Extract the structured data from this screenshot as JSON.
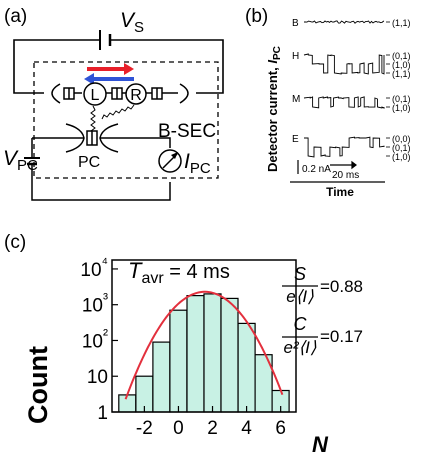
{
  "panels": {
    "a": {
      "tag": "(a)"
    },
    "b": {
      "tag": "(b)"
    },
    "c": {
      "tag": "(c)"
    }
  },
  "circuit": {
    "source_label": "V",
    "source_sub": "S",
    "dot_left": "L",
    "dot_right": "R",
    "sec_label": "B-SEC",
    "pc_label": "PC",
    "vpc_label": "V",
    "vpc_sub": "PC",
    "ipc_label": "I",
    "ipc_sub": "PC",
    "arrow_colors": {
      "forward": "#e8202a",
      "backward": "#2f53d6"
    }
  },
  "traces": {
    "ylabel_main": "Detector current, ",
    "ylabel_sym": "I",
    "ylabel_sub": "PC",
    "xlabel": "Time",
    "scale_current": "0.2 nA",
    "scale_time": "20 ms",
    "rows": [
      {
        "letter": "B",
        "states": [
          "(1,1)"
        ]
      },
      {
        "letter": "H",
        "states": [
          "(0,1)",
          "(1,0)",
          "(1,1)"
        ]
      },
      {
        "letter": "M",
        "states": [
          "(0,1)",
          "(1,0)"
        ]
      },
      {
        "letter": "E",
        "states": [
          "(0,0)",
          "(0,1)",
          "(1,0)"
        ]
      }
    ]
  },
  "histogram": {
    "tavr_sym": "T",
    "tavr_sub": "avr",
    "tavr_value": " = 4 ms",
    "ratio1_num": "S",
    "ratio1_den": "e⟨I⟩",
    "ratio1_value": "=0.88",
    "ratio2_num": "C",
    "ratio2_den": "e²⟨I⟩",
    "ratio2_value": "=0.17",
    "ylabel": "Count",
    "xlabel": "N",
    "bar_color": "#c8f1e4",
    "fit_color": "#e3303d"
  },
  "chart_data": {
    "type": "bar",
    "xlabel": "N",
    "ylabel": "Count",
    "yscale": "log",
    "ylim": [
      1,
      10000
    ],
    "x": [
      -3,
      -2,
      -1,
      0,
      1,
      2,
      3,
      4,
      5,
      6
    ],
    "values": [
      3,
      10,
      90,
      700,
      1800,
      2000,
      1500,
      300,
      40,
      4
    ],
    "fit": [
      1,
      4,
      60,
      600,
      1900,
      2100,
      1400,
      250,
      20,
      1
    ],
    "x_ticks": [
      "-2",
      "0",
      "2",
      "4",
      "6"
    ],
    "x_tick_values": [
      -2,
      0,
      2,
      4,
      6
    ],
    "y_ticks": [
      "1",
      "10",
      "10²",
      "10³",
      "10⁴"
    ],
    "y_tick_values": [
      1,
      10,
      100,
      1000,
      10000
    ]
  }
}
